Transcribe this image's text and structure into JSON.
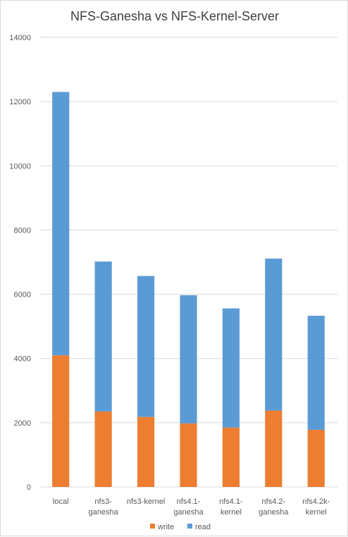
{
  "chart_data": {
    "type": "bar",
    "stacked": true,
    "title": "NFS-Ganesha vs NFS-Kernel-Server",
    "xlabel": "",
    "ylabel": "",
    "ylim": [
      0,
      14000
    ],
    "yticks": [
      0,
      2000,
      4000,
      6000,
      8000,
      10000,
      12000,
      14000
    ],
    "ytick_labels": [
      "0",
      "2000",
      "4000",
      "6000",
      "8000",
      "10000",
      "12000",
      "14000"
    ],
    "grid": true,
    "legend_position": "bottom",
    "categories": [
      [
        "local"
      ],
      [
        "nfs3-",
        "ganesha"
      ],
      [
        "nfs3-kernel"
      ],
      [
        "nfs4.1-",
        "ganesha"
      ],
      [
        "nfs4.1-",
        "kernel"
      ],
      [
        "nfs4.2-",
        "ganesha"
      ],
      [
        "nfs4.2k-",
        "kernel"
      ]
    ],
    "series": [
      {
        "name": "write",
        "color": "#ed7d31",
        "values": [
          4100,
          2350,
          2180,
          1980,
          1850,
          2380,
          1780
        ]
      },
      {
        "name": "read",
        "color": "#5b9bd5",
        "values": [
          8200,
          4670,
          4390,
          3990,
          3710,
          4730,
          3550
        ]
      }
    ]
  }
}
